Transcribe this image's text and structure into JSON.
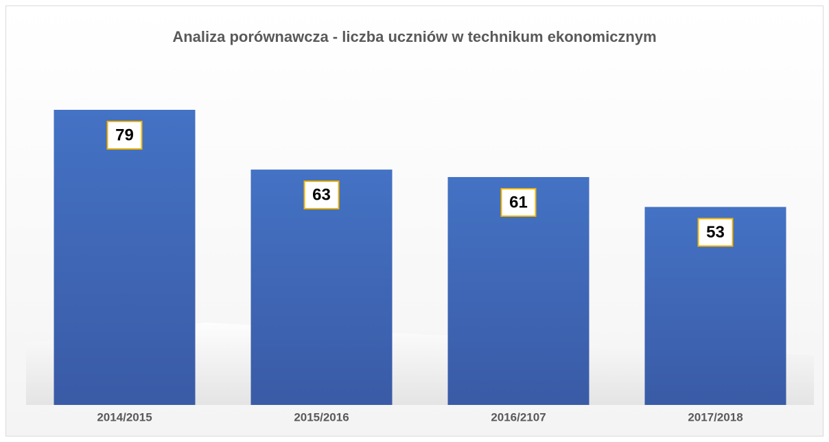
{
  "chart_data": {
    "type": "bar",
    "title": "Analiza porównawcza - liczba uczniów w technikum ekonomicznym",
    "categories": [
      "2014/2015",
      "2015/2016",
      "2016/2107",
      "2017/2018"
    ],
    "values": [
      79,
      63,
      61,
      53
    ],
    "color": "#4472c4"
  }
}
